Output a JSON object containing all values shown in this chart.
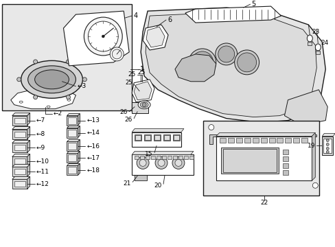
{
  "bg": "#ffffff",
  "lc": "#1a1a1a",
  "tc": "#000000",
  "gray_light": "#d8d8d8",
  "gray_mid": "#c0c0c0",
  "gray_dark": "#a0a0a0",
  "inset_bg": "#e8e8e8",
  "fig_width": 4.89,
  "fig_height": 3.6,
  "dpi": 100
}
